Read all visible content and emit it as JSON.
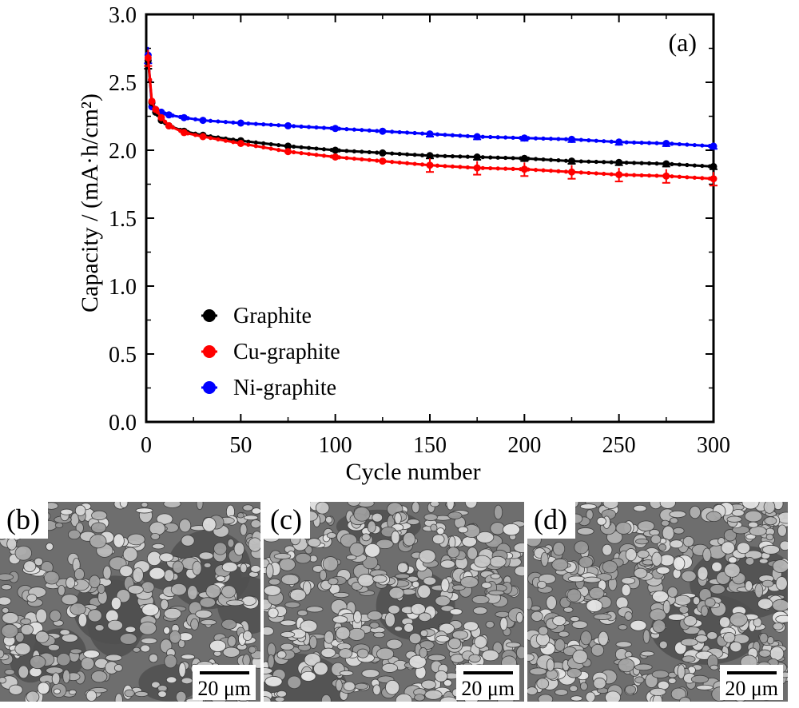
{
  "chart_data": {
    "type": "line",
    "panel_label": "(a)",
    "xlabel": "Cycle number",
    "ylabel": "Capacity / (mA·h/cm²)",
    "xlim": [
      0,
      300
    ],
    "ylim": [
      0.0,
      3.0
    ],
    "xticks": [
      "0",
      "50",
      "100",
      "150",
      "200",
      "250",
      "300"
    ],
    "yticks": [
      "0.0",
      "0.5",
      "1.0",
      "1.5",
      "2.0",
      "2.5",
      "3.0"
    ],
    "grid": false,
    "legend_position": "lower-left",
    "series": [
      {
        "name": "Graphite",
        "color": "#000000",
        "x": [
          1,
          3,
          5,
          8,
          12,
          20,
          30,
          50,
          75,
          100,
          125,
          150,
          175,
          200,
          225,
          250,
          275,
          300
        ],
        "y": [
          2.66,
          2.35,
          2.28,
          2.22,
          2.18,
          2.14,
          2.11,
          2.07,
          2.03,
          2.0,
          1.98,
          1.96,
          1.95,
          1.94,
          1.92,
          1.91,
          1.9,
          1.88
        ]
      },
      {
        "name": "Cu-graphite",
        "color": "#ff0000",
        "x": [
          1,
          3,
          5,
          8,
          12,
          20,
          30,
          50,
          75,
          100,
          125,
          150,
          175,
          200,
          225,
          250,
          275,
          300
        ],
        "y": [
          2.68,
          2.36,
          2.3,
          2.24,
          2.18,
          2.13,
          2.1,
          2.05,
          1.99,
          1.95,
          1.92,
          1.89,
          1.87,
          1.86,
          1.84,
          1.82,
          1.81,
          1.79
        ]
      },
      {
        "name": "Ni-graphite",
        "color": "#0000ff",
        "x": [
          1,
          3,
          5,
          8,
          12,
          20,
          30,
          50,
          75,
          100,
          125,
          150,
          175,
          200,
          225,
          250,
          275,
          300
        ],
        "y": [
          2.7,
          2.32,
          2.3,
          2.28,
          2.26,
          2.24,
          2.22,
          2.2,
          2.18,
          2.16,
          2.14,
          2.12,
          2.1,
          2.09,
          2.08,
          2.06,
          2.05,
          2.03
        ]
      }
    ]
  },
  "sem_panels": [
    {
      "label": "(b)",
      "scale_label": "20 μm"
    },
    {
      "label": "(c)",
      "scale_label": "20 μm"
    },
    {
      "label": "(d)",
      "scale_label": "20 μm"
    }
  ]
}
